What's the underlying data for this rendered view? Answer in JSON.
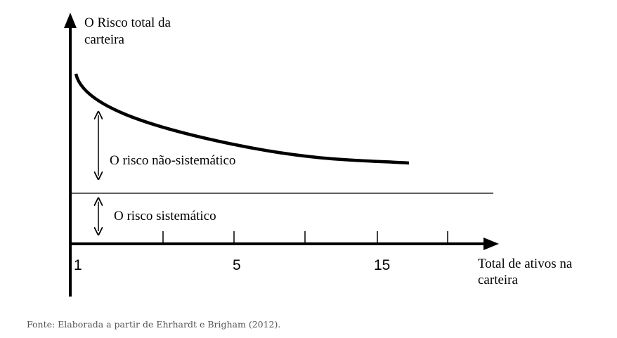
{
  "y_axis_label": [
    "O Risco total da",
    "carteira"
  ],
  "x_axis_label": [
    "Total de ativos na",
    "carteira"
  ],
  "x_tick_labels": [
    "1",
    "5",
    "15"
  ],
  "unsystematic_label": "O risco não-sistemático",
  "systematic_label": "O risco sistemático",
  "caption": "Fonte: Elaborada a partir de Ehrhardt e Brigham (2012).",
  "colors": {
    "line": "#000000",
    "caption": "#555555"
  }
}
